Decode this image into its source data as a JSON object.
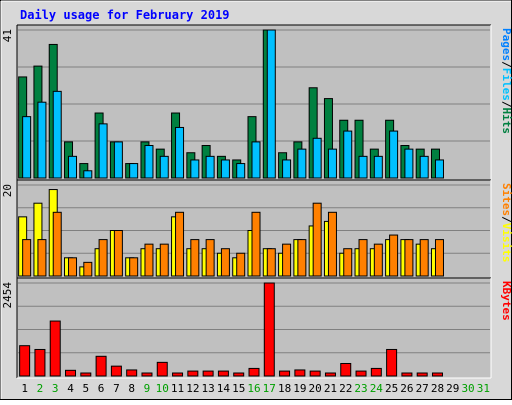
{
  "chart_data": {
    "type": "bar",
    "title": "Daily usage for February 2019",
    "days": [
      "1",
      "2",
      "3",
      "4",
      "5",
      "6",
      "7",
      "8",
      "9",
      "10",
      "11",
      "12",
      "13",
      "14",
      "15",
      "16",
      "17",
      "18",
      "19",
      "20",
      "21",
      "22",
      "23",
      "24",
      "25",
      "26",
      "27",
      "28",
      "29",
      "30",
      "31"
    ],
    "weekend_days": [
      2,
      3,
      9,
      10,
      16,
      17,
      23,
      24,
      30,
      31
    ],
    "colors": {
      "hits": "#008040",
      "files": "#00C0FF",
      "pages": "#0080FF",
      "visits": "#FFFF00",
      "sites": "#FF8000",
      "kbytes": "#FF0000",
      "title": "#0000FF",
      "weekday_label": "#000000",
      "weekend_label": "#00A000",
      "plot_bg": "#C0C0C0",
      "frame_bg": "#D8D8D8"
    },
    "panels": [
      {
        "id": "hits_files_pages",
        "ymax_label": "41",
        "ymax": 41,
        "legend": [
          {
            "text": "Pages",
            "color": "#0080FF"
          },
          {
            "text": "/",
            "color": "#000000"
          },
          {
            "text": "Files",
            "color": "#00C0FF"
          },
          {
            "text": "/",
            "color": "#000000"
          },
          {
            "text": "Hits",
            "color": "#008040"
          }
        ],
        "series": [
          {
            "name": "Hits",
            "color": "#008040",
            "values": [
              28,
              31,
              37,
              10,
              4,
              18,
              10,
              4,
              10,
              8,
              18,
              7,
              9,
              6,
              5,
              17,
              41,
              7,
              10,
              25,
              22,
              16,
              16,
              8,
              16,
              9,
              8,
              8,
              0,
              0,
              0
            ]
          },
          {
            "name": "Files",
            "color": "#00C0FF",
            "values": [
              17,
              21,
              24,
              6,
              2,
              15,
              10,
              4,
              9,
              6,
              14,
              5,
              6,
              5,
              4,
              10,
              41,
              5,
              8,
              11,
              8,
              13,
              6,
              6,
              13,
              8,
              6,
              5,
              0,
              0,
              0
            ]
          }
        ]
      },
      {
        "id": "visits_sites",
        "ymax_label": "20",
        "ymax": 20,
        "legend": [
          {
            "text": "Sites",
            "color": "#FF8000"
          },
          {
            "text": "/",
            "color": "#000000"
          },
          {
            "text": "Visits",
            "color": "#FFFF00"
          }
        ],
        "series": [
          {
            "name": "Visits",
            "color": "#FFFF00",
            "values": [
              13,
              16,
              19,
              4,
              2,
              6,
              10,
              4,
              6,
              6,
              13,
              6,
              6,
              5,
              4,
              10,
              6,
              5,
              8,
              11,
              12,
              5,
              6,
              6,
              8,
              8,
              7,
              6,
              0,
              0,
              0
            ]
          },
          {
            "name": "Sites",
            "color": "#FF8000",
            "values": [
              8,
              8,
              14,
              4,
              3,
              8,
              10,
              4,
              7,
              7,
              14,
              8,
              8,
              6,
              5,
              14,
              6,
              7,
              8,
              16,
              14,
              6,
              8,
              7,
              9,
              8,
              8,
              8,
              0,
              0,
              0
            ]
          }
        ]
      },
      {
        "id": "kbytes",
        "ymax_label": "2454",
        "ymax": 2454,
        "legend": [
          {
            "text": "KBytes",
            "color": "#FF0000"
          }
        ],
        "series": [
          {
            "name": "KBytes",
            "color": "#FF0000",
            "values": [
              800,
              700,
              1450,
              150,
              30,
              520,
              260,
              160,
              30,
              360,
              30,
              130,
              130,
              130,
              30,
              200,
              2454,
              130,
              160,
              130,
              30,
              330,
              130,
              200,
              700,
              30,
              30,
              30,
              0,
              0,
              0
            ]
          }
        ]
      }
    ]
  }
}
